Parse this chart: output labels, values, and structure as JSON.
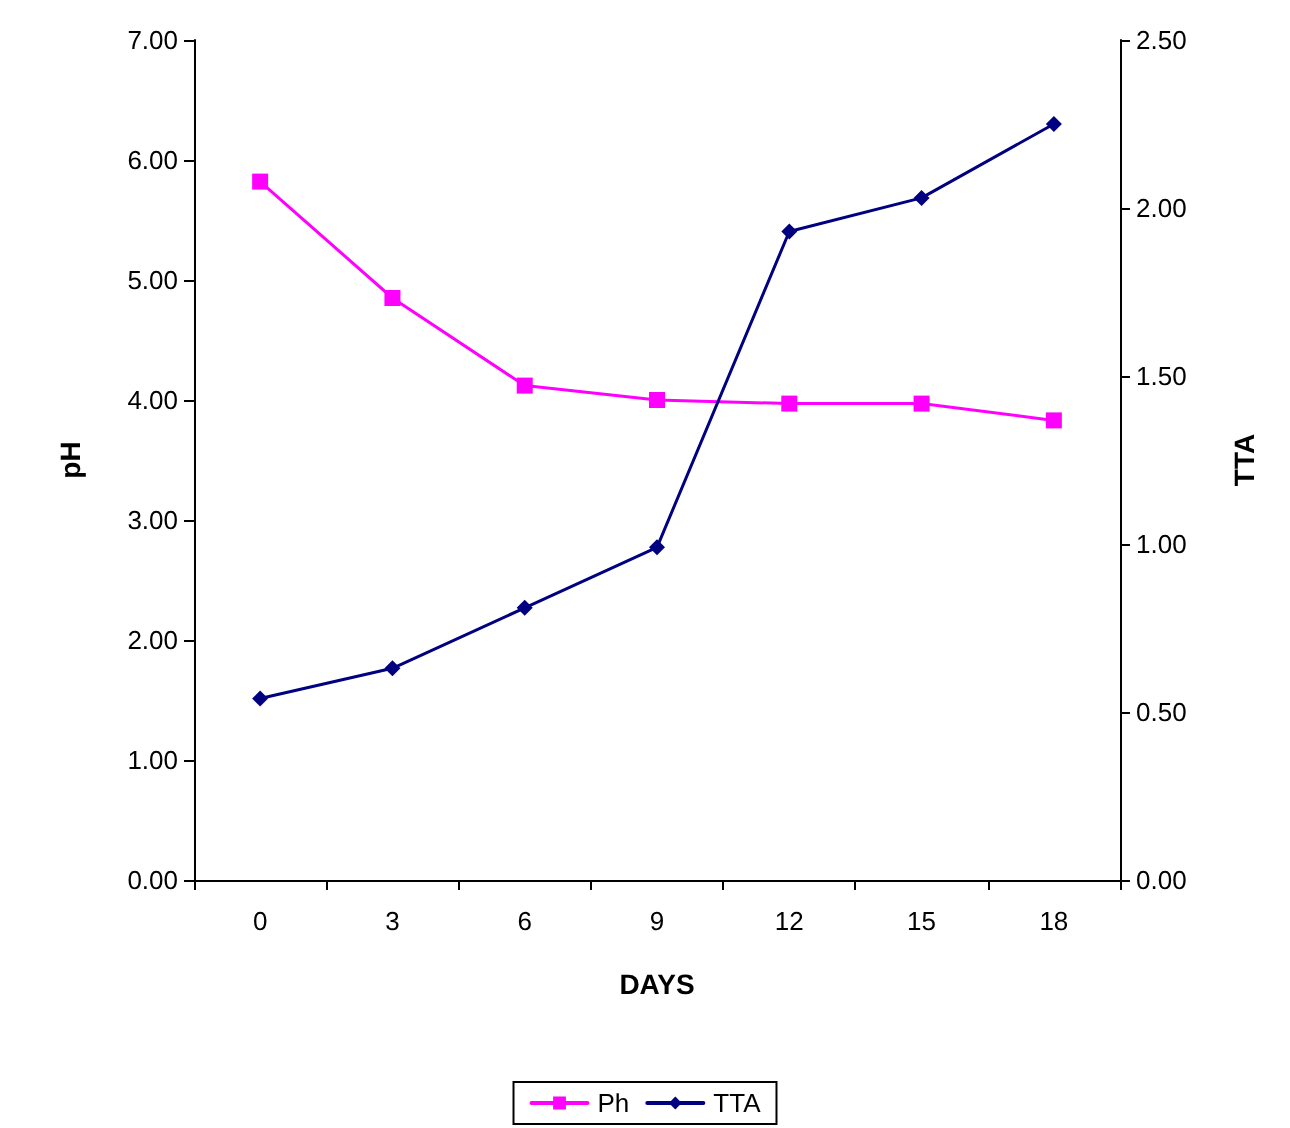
{
  "chart_data": {
    "type": "line",
    "xlabel": "DAYS",
    "ylabel": "pH",
    "y2label": "TTA",
    "categories": [
      "0",
      "3",
      "6",
      "9",
      "12",
      "15",
      "18"
    ],
    "series": [
      {
        "name": "Ph",
        "color": "#ff00ff",
        "marker": "square",
        "values": [
          5.82,
          4.85,
          4.12,
          4.0,
          3.97,
          3.97,
          3.83
        ]
      },
      {
        "name": "TTA",
        "color": "#000080",
        "marker": "diamond",
        "axis": "y2",
        "values": [
          0.54,
          0.63,
          0.81,
          0.99,
          1.93,
          2.03,
          2.25
        ]
      }
    ],
    "ylim": [
      0,
      7
    ],
    "yticks": [
      {
        "value": 0,
        "label": "0.00"
      },
      {
        "value": 1,
        "label": "1.00"
      },
      {
        "value": 2,
        "label": "2.00"
      },
      {
        "value": 3,
        "label": "3.00"
      },
      {
        "value": 4,
        "label": "4.00"
      },
      {
        "value": 5,
        "label": "5.00"
      },
      {
        "value": 6,
        "label": "6.00"
      },
      {
        "value": 7,
        "label": "7.00"
      }
    ],
    "y2lim": [
      0,
      2.5
    ],
    "y2ticks": [
      {
        "value": 0,
        "label": "0.00"
      },
      {
        "value": 0.5,
        "label": "0.50"
      },
      {
        "value": 1,
        "label": "1.00"
      },
      {
        "value": 1.5,
        "label": "1.50"
      },
      {
        "value": 2,
        "label": "2.00"
      },
      {
        "value": 2.5,
        "label": "2.50"
      }
    ],
    "grid": false,
    "legend": "bottom",
    "line_style": "solid"
  }
}
